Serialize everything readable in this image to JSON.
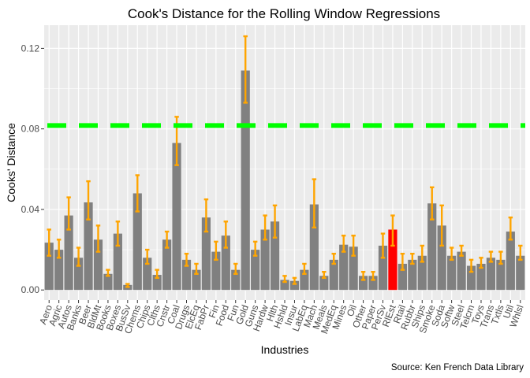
{
  "chart_data": {
    "type": "bar",
    "title": "Cook's Distance for the Rolling Window Regressions",
    "xlabel": "Industries",
    "ylabel": "Cooks' Distance",
    "caption": "Source: Ken French Data Library",
    "ylim": [
      -0.005,
      0.1315
    ],
    "yticks": [
      0.0,
      0.04,
      0.08,
      0.12
    ],
    "ytick_labels": [
      "0.00",
      "0.04",
      "0.08",
      "0.12"
    ],
    "threshold": 0.0817,
    "grid": true,
    "legend": "none",
    "colors": {
      "bar": "#808080",
      "highlight_bar": "#ff0000",
      "error_bar": "#ffa500",
      "threshold_line": "#00ff00",
      "panel": "#ebebeb",
      "grid": "#ffffff"
    },
    "highlight": "RlEst",
    "categories": [
      "Aero",
      "Agric",
      "Autos",
      "Banks",
      "Beer",
      "BldMt",
      "Books",
      "Boxes",
      "BusSv",
      "Chems",
      "Chips",
      "Clths",
      "Cnstr",
      "Coal",
      "Drugs",
      "ElcEq",
      "FabPr",
      "Fin",
      "Food",
      "Fun",
      "Gold",
      "Guns",
      "Hardw",
      "Hlth",
      "Hshld",
      "Insur",
      "LabEq",
      "Mach",
      "Meals",
      "MedEq",
      "Mines",
      "Oil",
      "Other",
      "Paper",
      "PerSv",
      "RlEst",
      "Rtail",
      "Rubbr",
      "Ships",
      "Smoke",
      "Soda",
      "Softw",
      "Steel",
      "Telcm",
      "Toys",
      "Trans",
      "Txtls",
      "Util",
      "Whlsl"
    ],
    "values": [
      0.0235,
      0.02,
      0.037,
      0.016,
      0.0435,
      0.025,
      0.008,
      0.028,
      0.0025,
      0.048,
      0.016,
      0.0075,
      0.025,
      0.073,
      0.015,
      0.01,
      0.036,
      0.019,
      0.027,
      0.01,
      0.109,
      0.02,
      0.03,
      0.034,
      0.005,
      0.0045,
      0.01,
      0.0425,
      0.007,
      0.015,
      0.0225,
      0.0215,
      0.007,
      0.007,
      0.022,
      0.03,
      0.013,
      0.015,
      0.017,
      0.043,
      0.032,
      0.017,
      0.019,
      0.012,
      0.013,
      0.016,
      0.015,
      0.029,
      0.017
    ],
    "error_low": [
      0.017,
      0.016,
      0.03,
      0.012,
      0.035,
      0.019,
      0.007,
      0.022,
      0.0015,
      0.039,
      0.013,
      0.006,
      0.021,
      0.062,
      0.012,
      0.008,
      0.029,
      0.015,
      0.021,
      0.008,
      0.093,
      0.017,
      0.025,
      0.026,
      0.004,
      0.003,
      0.008,
      0.031,
      0.006,
      0.013,
      0.019,
      0.017,
      0.005,
      0.005,
      0.016,
      0.022,
      0.01,
      0.013,
      0.014,
      0.035,
      0.022,
      0.015,
      0.017,
      0.009,
      0.011,
      0.014,
      0.013,
      0.025,
      0.015
    ],
    "error_high": [
      0.03,
      0.025,
      0.046,
      0.021,
      0.054,
      0.032,
      0.01,
      0.034,
      0.003,
      0.057,
      0.02,
      0.01,
      0.029,
      0.086,
      0.018,
      0.013,
      0.045,
      0.024,
      0.034,
      0.013,
      0.126,
      0.024,
      0.037,
      0.042,
      0.007,
      0.006,
      0.013,
      0.055,
      0.009,
      0.018,
      0.027,
      0.027,
      0.009,
      0.009,
      0.028,
      0.037,
      0.018,
      0.018,
      0.022,
      0.051,
      0.042,
      0.021,
      0.022,
      0.015,
      0.016,
      0.019,
      0.019,
      0.036,
      0.022
    ]
  }
}
